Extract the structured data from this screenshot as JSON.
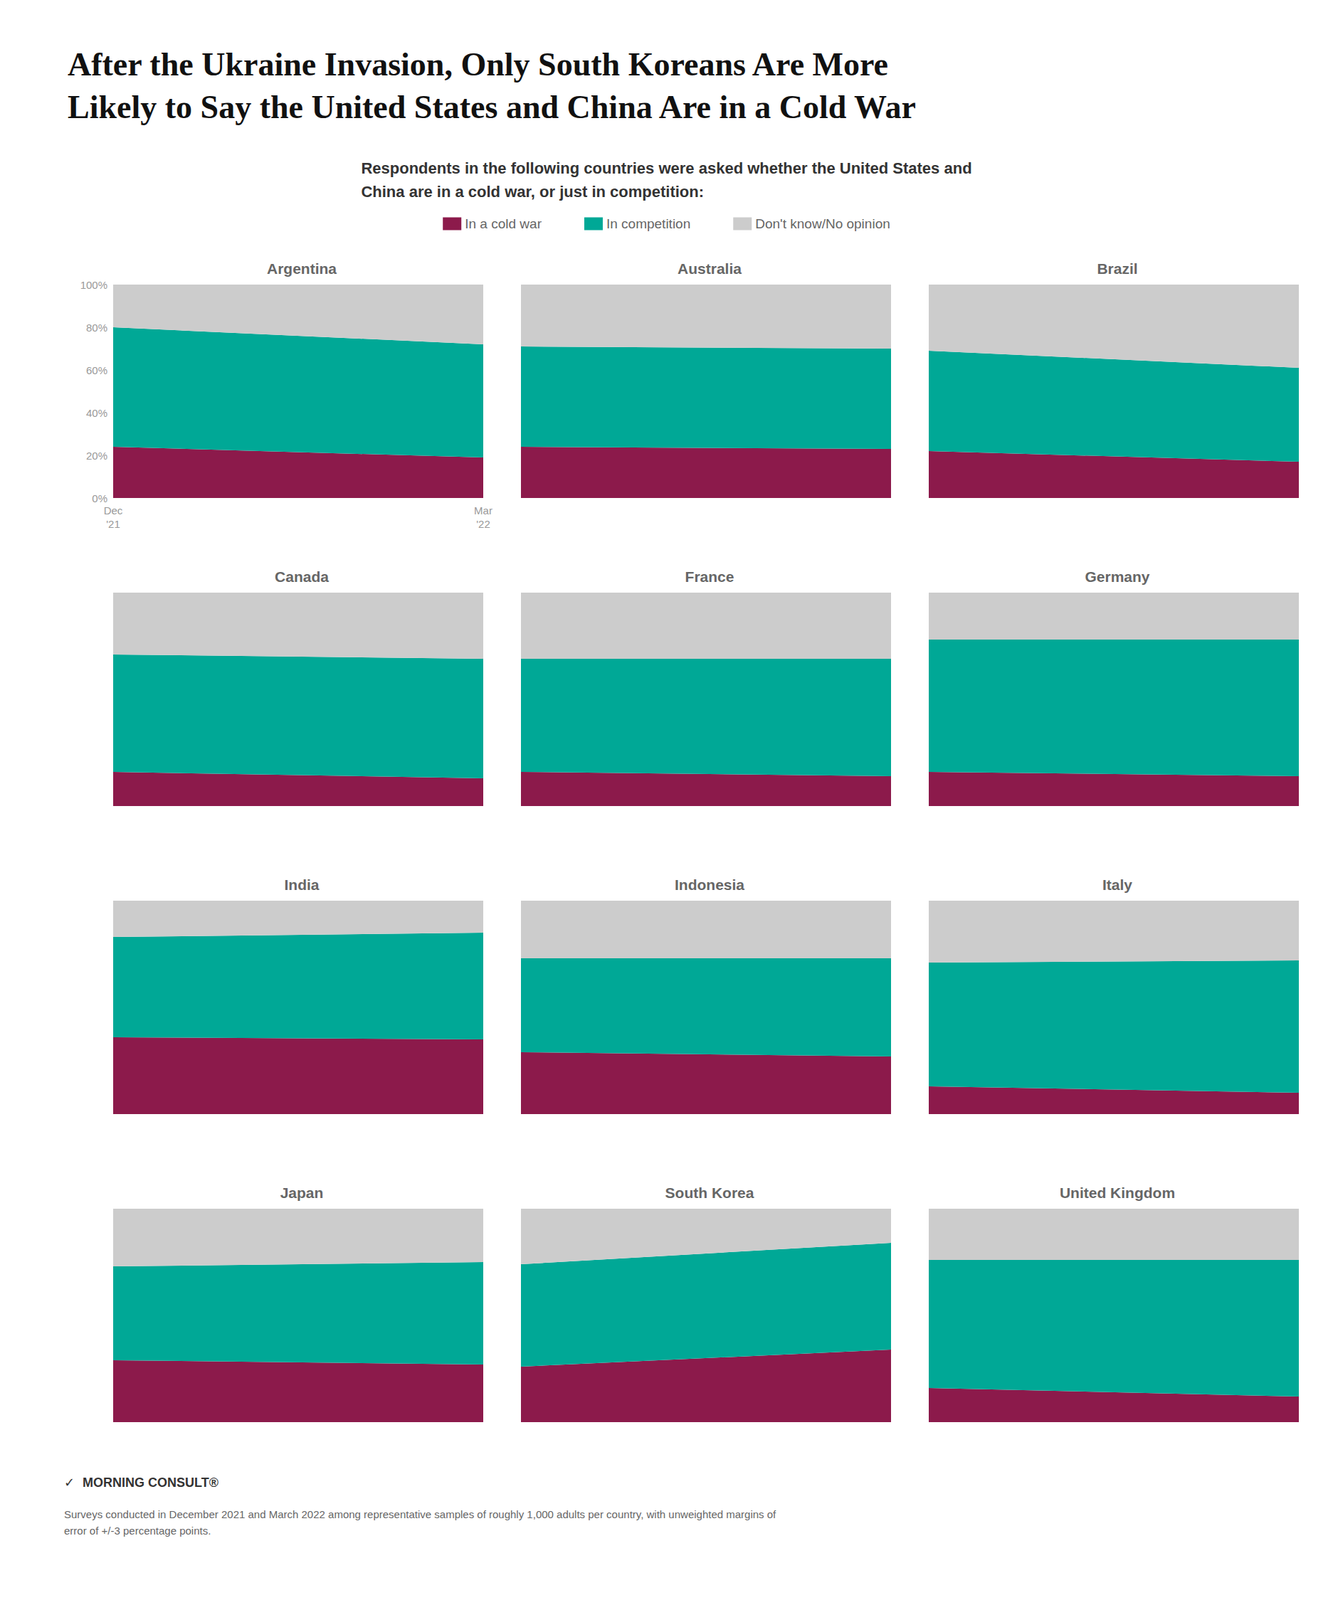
{
  "title": "After the Ukraine Invasion, Only South Koreans Are More\nLikely to Say the United States and China Are in a Cold War",
  "subtitle": "Respondents in the following countries were asked whether the United States and\nChina are in a cold war, or just in competition:",
  "legend": "top",
  "annotations": [
    "✓",
    "MORNING CONSULT®",
    "Surveys conducted in December 2021 and March 2022 among representative samples of roughly 1,000 adults per country, with unweighted margins of\nerror of +/-3 percentage points."
  ],
  "chart_data": [
    {
      "type": "area",
      "stacked": true,
      "title": "Argentina",
      "categories": [
        "Dec\n'21",
        "Mar\n'22"
      ],
      "ylim": [
        0,
        100
      ],
      "yticks": [
        {
          "value": 0,
          "label": "0%"
        },
        {
          "value": 20,
          "label": "20%"
        },
        {
          "value": 40,
          "label": "40%"
        },
        {
          "value": 60,
          "label": "60%"
        },
        {
          "value": 80,
          "label": "80%"
        },
        {
          "value": 100,
          "label": "100%"
        }
      ],
      "grid": false,
      "series": [
        {
          "name": "In a cold war",
          "color": "#8C1A4B",
          "values": [
            24,
            19
          ]
        },
        {
          "name": "In competition",
          "color": "#00A896",
          "values": [
            56,
            53
          ]
        },
        {
          "name": "Don't know/No opinion",
          "color": "#CCCCCC",
          "values": [
            20,
            28
          ]
        }
      ]
    },
    {
      "type": "area",
      "stacked": true,
      "title": "Australia",
      "categories": [
        "Dec\n'21",
        "Mar\n'22"
      ],
      "ylim": [
        0,
        100
      ],
      "grid": false,
      "tick_labels": false,
      "series": [
        {
          "name": "In a cold war",
          "color": "#8C1A4B",
          "values": [
            24,
            23
          ]
        },
        {
          "name": "In competition",
          "color": "#00A896",
          "values": [
            47,
            47
          ]
        },
        {
          "name": "Don't know/No opinion",
          "color": "#CCCCCC",
          "values": [
            29,
            30
          ]
        }
      ]
    },
    {
      "type": "area",
      "stacked": true,
      "title": "Brazil",
      "categories": [
        "Dec\n'21",
        "Mar\n'22"
      ],
      "ylim": [
        0,
        100
      ],
      "grid": false,
      "tick_labels": false,
      "series": [
        {
          "name": "In a cold war",
          "color": "#8C1A4B",
          "values": [
            22,
            17
          ]
        },
        {
          "name": "In competition",
          "color": "#00A896",
          "values": [
            47,
            44
          ]
        },
        {
          "name": "Don't know/No opinion",
          "color": "#CCCCCC",
          "values": [
            31,
            39
          ]
        }
      ]
    },
    {
      "type": "area",
      "stacked": true,
      "title": "Canada",
      "categories": [
        "Dec\n'21",
        "Mar\n'22"
      ],
      "ylim": [
        0,
        100
      ],
      "grid": false,
      "tick_labels": false,
      "series": [
        {
          "name": "In a cold war",
          "color": "#8C1A4B",
          "values": [
            16,
            13
          ]
        },
        {
          "name": "In competition",
          "color": "#00A896",
          "values": [
            55,
            56
          ]
        },
        {
          "name": "Don't know/No opinion",
          "color": "#CCCCCC",
          "values": [
            29,
            31
          ]
        }
      ]
    },
    {
      "type": "area",
      "stacked": true,
      "title": "France",
      "categories": [
        "Dec\n'21",
        "Mar\n'22"
      ],
      "ylim": [
        0,
        100
      ],
      "grid": false,
      "tick_labels": false,
      "series": [
        {
          "name": "In a cold war",
          "color": "#8C1A4B",
          "values": [
            16,
            14
          ]
        },
        {
          "name": "In competition",
          "color": "#00A896",
          "values": [
            53,
            55
          ]
        },
        {
          "name": "Don't know/No opinion",
          "color": "#CCCCCC",
          "values": [
            31,
            31
          ]
        }
      ]
    },
    {
      "type": "area",
      "stacked": true,
      "title": "Germany",
      "categories": [
        "Dec\n'21",
        "Mar\n'22"
      ],
      "ylim": [
        0,
        100
      ],
      "grid": false,
      "tick_labels": false,
      "series": [
        {
          "name": "In a cold war",
          "color": "#8C1A4B",
          "values": [
            16,
            14
          ]
        },
        {
          "name": "In competition",
          "color": "#00A896",
          "values": [
            62,
            64
          ]
        },
        {
          "name": "Don't know/No opinion",
          "color": "#CCCCCC",
          "values": [
            22,
            22
          ]
        }
      ]
    },
    {
      "type": "area",
      "stacked": true,
      "title": "India",
      "categories": [
        "Dec\n'21",
        "Mar\n'22"
      ],
      "ylim": [
        0,
        100
      ],
      "grid": false,
      "tick_labels": false,
      "series": [
        {
          "name": "In a cold war",
          "color": "#8C1A4B",
          "values": [
            36,
            35
          ]
        },
        {
          "name": "In competition",
          "color": "#00A896",
          "values": [
            47,
            50
          ]
        },
        {
          "name": "Don't know/No opinion",
          "color": "#CCCCCC",
          "values": [
            17,
            15
          ]
        }
      ]
    },
    {
      "type": "area",
      "stacked": true,
      "title": "Indonesia",
      "categories": [
        "Dec\n'21",
        "Mar\n'22"
      ],
      "ylim": [
        0,
        100
      ],
      "grid": false,
      "tick_labels": false,
      "series": [
        {
          "name": "In a cold war",
          "color": "#8C1A4B",
          "values": [
            29,
            27
          ]
        },
        {
          "name": "In competition",
          "color": "#00A896",
          "values": [
            44,
            46
          ]
        },
        {
          "name": "Don't know/No opinion",
          "color": "#CCCCCC",
          "values": [
            27,
            27
          ]
        }
      ]
    },
    {
      "type": "area",
      "stacked": true,
      "title": "Italy",
      "categories": [
        "Dec\n'21",
        "Mar\n'22"
      ],
      "ylim": [
        0,
        100
      ],
      "grid": false,
      "tick_labels": false,
      "series": [
        {
          "name": "In a cold war",
          "color": "#8C1A4B",
          "values": [
            13,
            10
          ]
        },
        {
          "name": "In competition",
          "color": "#00A896",
          "values": [
            58,
            62
          ]
        },
        {
          "name": "Don't know/No opinion",
          "color": "#CCCCCC",
          "values": [
            29,
            28
          ]
        }
      ]
    },
    {
      "type": "area",
      "stacked": true,
      "title": "Japan",
      "categories": [
        "Dec\n'21",
        "Mar\n'22"
      ],
      "ylim": [
        0,
        100
      ],
      "grid": false,
      "tick_labels": false,
      "series": [
        {
          "name": "In a cold war",
          "color": "#8C1A4B",
          "values": [
            29,
            27
          ]
        },
        {
          "name": "In competition",
          "color": "#00A896",
          "values": [
            44,
            48
          ]
        },
        {
          "name": "Don't know/No opinion",
          "color": "#CCCCCC",
          "values": [
            27,
            25
          ]
        }
      ]
    },
    {
      "type": "area",
      "stacked": true,
      "title": "South Korea",
      "categories": [
        "Dec\n'21",
        "Mar\n'22"
      ],
      "ylim": [
        0,
        100
      ],
      "grid": false,
      "tick_labels": false,
      "series": [
        {
          "name": "In a cold war",
          "color": "#8C1A4B",
          "values": [
            26,
            34
          ]
        },
        {
          "name": "In competition",
          "color": "#00A896",
          "values": [
            48,
            50
          ]
        },
        {
          "name": "Don't know/No opinion",
          "color": "#CCCCCC",
          "values": [
            26,
            16
          ]
        }
      ]
    },
    {
      "type": "area",
      "stacked": true,
      "title": "United Kingdom",
      "categories": [
        "Dec\n'21",
        "Mar\n'22"
      ],
      "ylim": [
        0,
        100
      ],
      "grid": false,
      "tick_labels": false,
      "series": [
        {
          "name": "In a cold war",
          "color": "#8C1A4B",
          "values": [
            16,
            12
          ]
        },
        {
          "name": "In competition",
          "color": "#00A896",
          "values": [
            60,
            64
          ]
        },
        {
          "name": "Don't know/No opinion",
          "color": "#CCCCCC",
          "values": [
            24,
            24
          ]
        }
      ]
    }
  ]
}
